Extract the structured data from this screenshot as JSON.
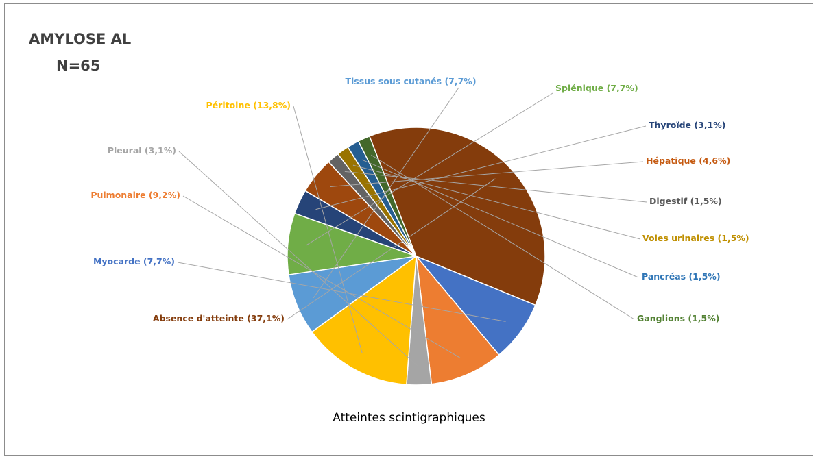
{
  "chart_data": {
    "type": "pie",
    "title": "AMYLOSE AL",
    "subtitle": "N=65",
    "xlabel": "Atteintes scintigraphiques",
    "slices": [
      {
        "label": "Tissus sous cutanés (7,7%)",
        "value": 7.7,
        "color": "#5B9BD5"
      },
      {
        "label": "Splénique (7,7%)",
        "value": 7.7,
        "color": "#70AD47"
      },
      {
        "label": "Thyroïde (3,1%)",
        "value": 3.1,
        "color": "#264478"
      },
      {
        "label": "Hépatique (4,6%)",
        "value": 4.6,
        "color": "#9E480E"
      },
      {
        "label": "Digestif (1,5%)",
        "value": 1.5,
        "color": "#636363"
      },
      {
        "label": "Voies urinaires (1,5%)",
        "value": 1.5,
        "color": "#997300"
      },
      {
        "label": "Pancréas (1,5%)",
        "value": 1.5,
        "color": "#255E91"
      },
      {
        "label": "Ganglions (1,5%)",
        "value": 1.5,
        "color": "#43682B"
      },
      {
        "label": "Absence d'atteinte (37,1%)",
        "value": 37.1,
        "color": "#843C0C"
      },
      {
        "label": "Myocarde (7,7%)",
        "value": 7.7,
        "color": "#4472C4"
      },
      {
        "label": "Pulmonaire  (9,2%)",
        "value": 9.2,
        "color": "#ED7D31"
      },
      {
        "label": "Pleural (3,1%)",
        "value": 3.1,
        "color": "#A5A5A5"
      },
      {
        "label": "Péritoine (13,8%)",
        "value": 13.8,
        "color": "#FFC000"
      }
    ],
    "label_colors": {
      "Tissus sous cutanés (7,7%)": "#5B9BD5",
      "Splénique (7,7%)": "#70AD47",
      "Thyroïde (3,1%)": "#264478",
      "Hépatique (4,6%)": "#C55A11",
      "Digestif (1,5%)": "#595959",
      "Voies urinaires (1,5%)": "#BF8F00",
      "Pancréas (1,5%)": "#2E75B6",
      "Ganglions (1,5%)": "#548235",
      "Absence d'atteinte (37,1%)": "#843C0C",
      "Myocarde (7,7%)": "#4472C4",
      "Pulmonaire  (9,2%)": "#ED7D31",
      "Pleural (3,1%)": "#A5A5A5",
      "Péritoine (13,8%)": "#FFC000"
    },
    "leader_color": "#A6A6A6"
  }
}
